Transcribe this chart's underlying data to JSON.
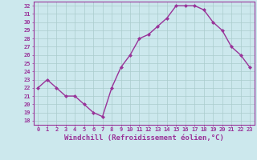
{
  "x": [
    0,
    1,
    2,
    3,
    4,
    5,
    6,
    7,
    8,
    9,
    10,
    11,
    12,
    13,
    14,
    15,
    16,
    17,
    18,
    19,
    20,
    21,
    22,
    23
  ],
  "y": [
    22,
    23,
    22,
    21,
    21,
    20,
    19,
    18.5,
    22,
    24.5,
    26,
    28,
    28.5,
    29.5,
    30.5,
    32,
    32,
    32,
    31.5,
    30,
    29,
    27,
    26,
    24.5
  ],
  "line_color": "#993399",
  "marker": "D",
  "marker_size": 2,
  "bg_color": "#cce8ed",
  "grid_color": "#aacccc",
  "xlabel": "Windchill (Refroidissement éolien,°C)",
  "xlim": [
    -0.5,
    23.5
  ],
  "ylim": [
    17.5,
    32.5
  ],
  "yticks": [
    18,
    19,
    20,
    21,
    22,
    23,
    24,
    25,
    26,
    27,
    28,
    29,
    30,
    31,
    32
  ],
  "xticks": [
    0,
    1,
    2,
    3,
    4,
    5,
    6,
    7,
    8,
    9,
    10,
    11,
    12,
    13,
    14,
    15,
    16,
    17,
    18,
    19,
    20,
    21,
    22,
    23
  ],
  "tick_label_fontsize": 5,
  "xlabel_fontsize": 6.5,
  "tick_color": "#993399",
  "axis_color": "#993399",
  "line_width": 1.0,
  "spine_color": "#993399"
}
